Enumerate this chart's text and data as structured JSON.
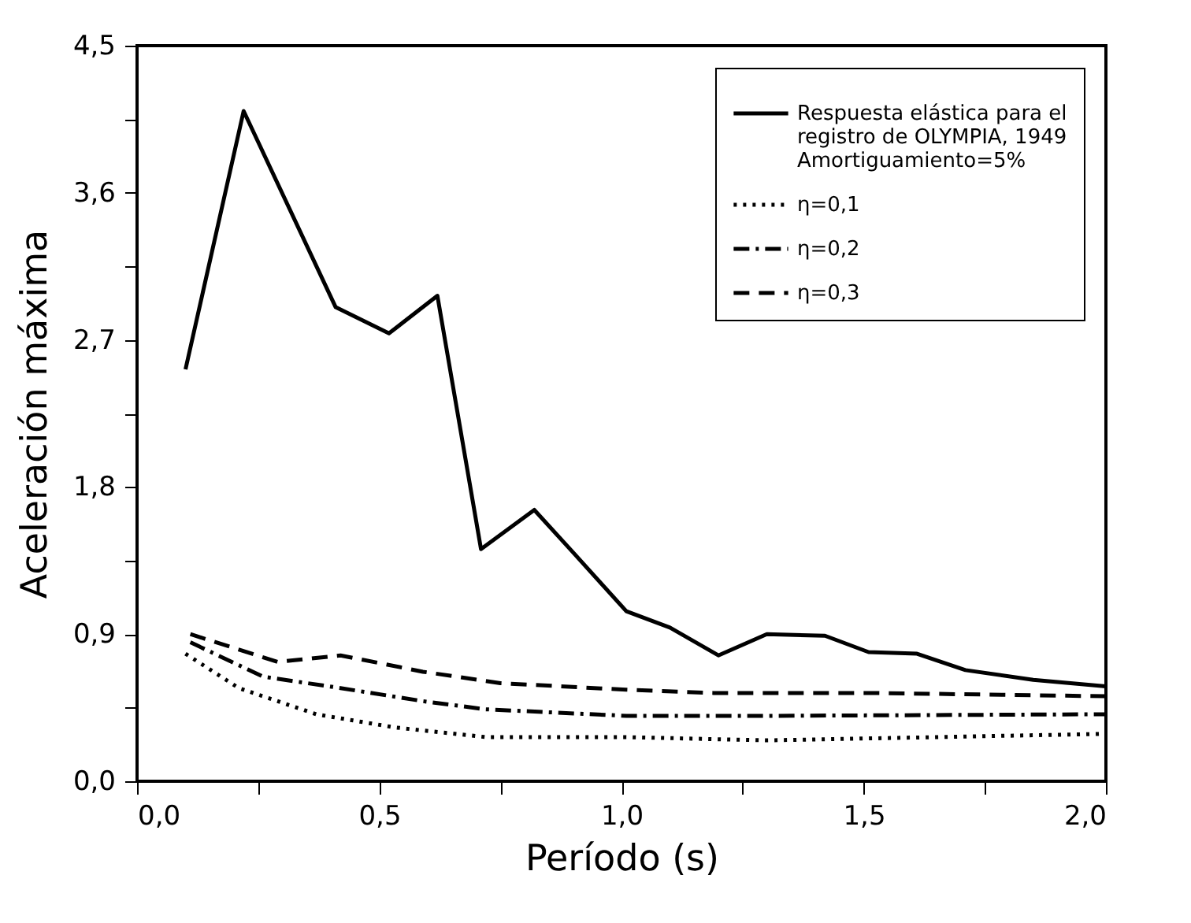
{
  "chart_data": {
    "type": "line",
    "xlabel": "Período  (s)",
    "ylabel": "Aceleración  máxima",
    "legend": "top right",
    "xlim": [
      0,
      2
    ],
    "ylim": [
      0,
      4.5
    ],
    "xticks": [
      {
        "value": 0,
        "label": "0,0"
      },
      {
        "value": 0.25,
        "label": null
      },
      {
        "value": 0.5,
        "label": "0,5"
      },
      {
        "value": 0.75,
        "label": null
      },
      {
        "value": 1,
        "label": "1,0"
      },
      {
        "value": 1.25,
        "label": null
      },
      {
        "value": 1.5,
        "label": "1,5"
      },
      {
        "value": 1.75,
        "label": null
      },
      {
        "value": 2,
        "label": "2,0"
      }
    ],
    "yticks": [
      {
        "value": 0,
        "label": "0,0"
      },
      {
        "value": 0.45,
        "label": null
      },
      {
        "value": 0.9,
        "label": "0,9"
      },
      {
        "value": 1.35,
        "label": null
      },
      {
        "value": 1.8,
        "label": "1,8"
      },
      {
        "value": 2.25,
        "label": null
      },
      {
        "value": 2.7,
        "label": "2,7"
      },
      {
        "value": 3.15,
        "label": null
      },
      {
        "value": 3.6,
        "label": "3,6"
      },
      {
        "value": 4.05,
        "label": null
      },
      {
        "value": 4.5,
        "label": "4,5"
      }
    ],
    "series": [
      {
        "name": "Respuesta elástica para el registro de OLYMPIA, 1949 Amortiguamiento=5%",
        "color": "#000000",
        "line_style": "solid",
        "x": [
          0.1,
          0.22,
          0.41,
          0.52,
          0.62,
          0.71,
          0.82,
          0.9,
          1.01,
          1.1,
          1.2,
          1.3,
          1.42,
          1.51,
          1.61,
          1.71,
          1.85,
          2.0
        ],
        "values": [
          2.52,
          4.1,
          2.9,
          2.74,
          2.97,
          1.42,
          1.66,
          1.4,
          1.04,
          0.94,
          0.77,
          0.9,
          0.89,
          0.79,
          0.78,
          0.68,
          0.62,
          0.58
        ]
      },
      {
        "name": "η=0,1",
        "color": "#000000",
        "line_style": "dotted",
        "x": [
          0.1,
          0.21,
          0.37,
          0.53,
          0.72,
          1.01,
          1.3,
          2.0
        ],
        "values": [
          0.78,
          0.57,
          0.41,
          0.33,
          0.27,
          0.27,
          0.25,
          0.29
        ]
      },
      {
        "name": "η=0,2",
        "color": "#000000",
        "line_style": "dashdot",
        "x": [
          0.11,
          0.26,
          0.42,
          0.59,
          0.72,
          1.01,
          1.3,
          2.0
        ],
        "values": [
          0.85,
          0.64,
          0.57,
          0.49,
          0.44,
          0.4,
          0.4,
          0.41
        ]
      },
      {
        "name": "η=0,3",
        "color": "#000000",
        "line_style": "dashed",
        "x": [
          0.11,
          0.29,
          0.42,
          0.59,
          0.75,
          1.01,
          1.19,
          1.52,
          2.0
        ],
        "values": [
          0.9,
          0.73,
          0.77,
          0.67,
          0.6,
          0.56,
          0.54,
          0.54,
          0.52
        ]
      }
    ]
  }
}
